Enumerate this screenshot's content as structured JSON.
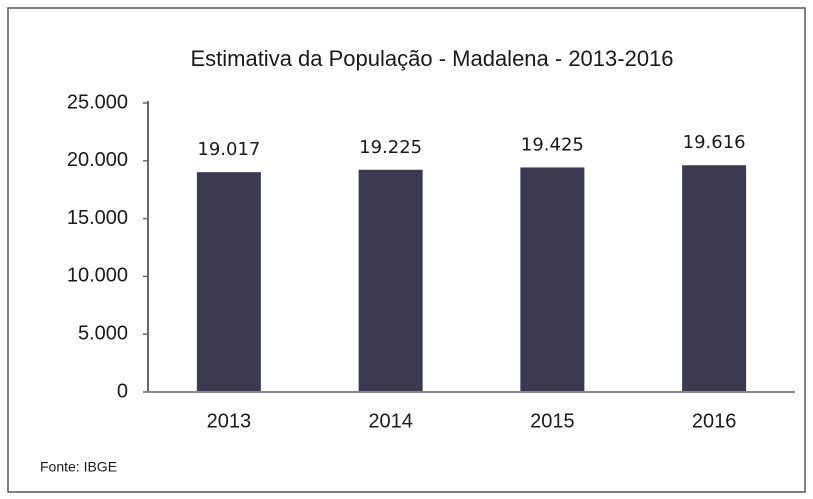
{
  "chart_data": {
    "type": "bar",
    "title": "Estimativa da População - Madalena - 2013-2016",
    "categories": [
      "2013",
      "2014",
      "2015",
      "2016"
    ],
    "values": [
      19017,
      19225,
      19425,
      19616
    ],
    "value_labels": [
      "19.017",
      "19.225",
      "19.425",
      "19.616"
    ],
    "color": "#3b3a50",
    "ylim": [
      0,
      25000
    ],
    "yticks": [
      0,
      {
        "value": 5000,
        "label": "5.000"
      },
      {
        "value": 10000,
        "label": "10.000"
      },
      {
        "value": 15000,
        "label": "15.000"
      },
      {
        "value": 20000,
        "label": "20.000"
      },
      {
        "value": 25000,
        "label": "25.000"
      }
    ],
    "grid": false,
    "source": "Fonte: IBGE"
  }
}
